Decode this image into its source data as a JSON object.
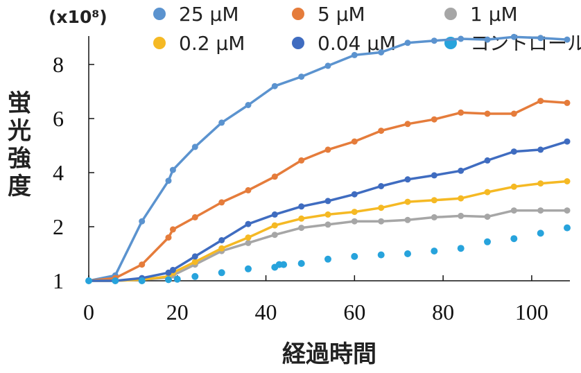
{
  "chart_data": {
    "type": "line",
    "ylabel": "蛍光強度",
    "xlabel": "経過時間",
    "y_multiplier": "(x10⁸)",
    "xlim": [
      0,
      108
    ],
    "ylim": [
      1,
      8.6
    ],
    "x_ticks": [
      0,
      20,
      40,
      60,
      80,
      100
    ],
    "y_ticks": [
      {
        "value": 8,
        "label": "8"
      },
      {
        "value": 6,
        "label": "6"
      },
      {
        "value": 4,
        "label": "4"
      },
      {
        "value": 2,
        "label": "2"
      },
      {
        "value": 1,
        "label": "1"
      }
    ],
    "legend_position": "top",
    "series": [
      {
        "name": "25 μM",
        "color": "#5b93cf",
        "style": "line",
        "x": [
          0,
          6,
          12,
          18,
          19,
          24,
          30,
          36,
          42,
          48,
          54,
          60,
          66,
          72,
          78,
          84,
          90,
          96,
          102,
          108
        ],
        "values": [
          1.0,
          1.1,
          2.2,
          3.7,
          4.1,
          4.95,
          5.85,
          6.5,
          7.2,
          7.55,
          7.95,
          8.35,
          8.45,
          8.8,
          8.88,
          8.95,
          8.92,
          9.02,
          8.98,
          8.92
        ]
      },
      {
        "name": "5 μM",
        "color": "#e57c3b",
        "style": "line",
        "x": [
          0,
          6,
          12,
          18,
          19,
          24,
          30,
          36,
          42,
          48,
          54,
          60,
          66,
          72,
          78,
          84,
          90,
          96,
          102,
          108
        ],
        "values": [
          1.0,
          1.05,
          1.3,
          1.8,
          1.95,
          2.35,
          2.9,
          3.35,
          3.85,
          4.45,
          4.85,
          5.15,
          5.55,
          5.8,
          5.97,
          6.22,
          6.18,
          6.18,
          6.65,
          6.58
        ]
      },
      {
        "name": "1 μM",
        "color": "#a6a6a6",
        "style": "line",
        "x": [
          0,
          6,
          12,
          18,
          19,
          24,
          30,
          36,
          42,
          48,
          54,
          60,
          66,
          72,
          78,
          84,
          90,
          96,
          102,
          108
        ],
        "values": [
          1.0,
          1.0,
          1.02,
          1.06,
          1.1,
          1.3,
          1.55,
          1.7,
          1.85,
          1.98,
          2.08,
          2.2,
          2.2,
          2.25,
          2.35,
          2.4,
          2.37,
          2.6,
          2.6,
          2.6
        ]
      },
      {
        "name": "0.2 μM",
        "color": "#f5b924",
        "style": "line",
        "x": [
          0,
          6,
          12,
          18,
          19,
          24,
          30,
          36,
          42,
          48,
          54,
          60,
          66,
          72,
          78,
          84,
          90,
          96,
          102,
          108
        ],
        "values": [
          1.0,
          1.0,
          1.02,
          1.08,
          1.15,
          1.35,
          1.6,
          1.8,
          2.05,
          2.3,
          2.45,
          2.55,
          2.7,
          2.92,
          2.98,
          3.05,
          3.28,
          3.48,
          3.6,
          3.68
        ]
      },
      {
        "name": "0.04 μM",
        "color": "#3f6cc0",
        "style": "line",
        "x": [
          0,
          6,
          12,
          18,
          19,
          24,
          30,
          36,
          42,
          48,
          54,
          60,
          66,
          72,
          78,
          84,
          90,
          96,
          102,
          108
        ],
        "values": [
          1.0,
          1.0,
          1.05,
          1.15,
          1.2,
          1.45,
          1.75,
          2.1,
          2.45,
          2.75,
          2.95,
          3.2,
          3.5,
          3.75,
          3.9,
          4.07,
          4.45,
          4.78,
          4.85,
          5.15
        ]
      },
      {
        "name": "コントロール",
        "color": "#27a3dc",
        "style": "markers",
        "x": [
          0,
          6,
          12,
          18,
          20,
          24,
          30,
          36,
          42,
          43,
          44,
          48,
          54,
          60,
          66,
          72,
          78,
          84,
          90,
          96,
          102,
          108
        ],
        "values": [
          1.0,
          1.0,
          1.0,
          1.02,
          1.03,
          1.08,
          1.15,
          1.22,
          1.25,
          1.3,
          1.3,
          1.32,
          1.4,
          1.45,
          1.48,
          1.5,
          1.55,
          1.6,
          1.72,
          1.78,
          1.88,
          1.98
        ]
      }
    ]
  }
}
